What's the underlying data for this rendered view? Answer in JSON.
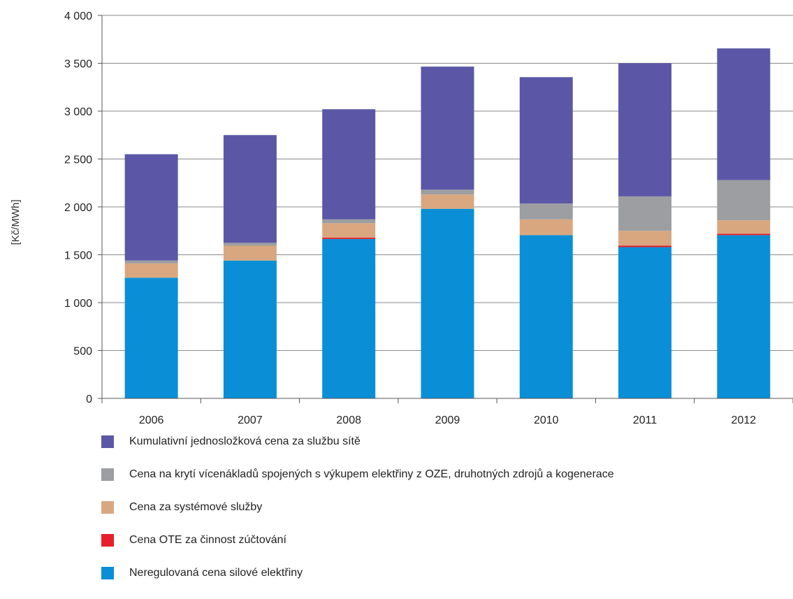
{
  "chart_data": {
    "type": "bar",
    "stacked": true,
    "categories": [
      "2006",
      "2007",
      "2008",
      "2009",
      "2010",
      "2011",
      "2012"
    ],
    "ylabel": "[Kč/MWh]",
    "ylim": [
      0,
      4000
    ],
    "yticks": [
      0,
      500,
      1000,
      1500,
      2000,
      2500,
      3000,
      3500,
      4000
    ],
    "ytick_labels": [
      "0",
      "500",
      "1 000",
      "1 500",
      "2 000",
      "2 500",
      "3 000",
      "3 500",
      "4 000"
    ],
    "grid": true,
    "legend_position": "bottom",
    "series": [
      {
        "name": "Neregulovaná cena silové elektřiny",
        "color": "#0a8fd6",
        "values": [
          1260,
          1440,
          1665,
          1980,
          1705,
          1580,
          1705
        ]
      },
      {
        "name": "Cena OTE za činnost zúčtování",
        "color": "#e6202a",
        "values": [
          0,
          0,
          15,
          0,
          0,
          15,
          15
        ]
      },
      {
        "name": "Cena za systémové služby",
        "color": "#d9a77f",
        "values": [
          150,
          155,
          150,
          150,
          165,
          155,
          140
        ]
      },
      {
        "name": "Cena na krytí vícenákladů spojených s výkupem elektřiny z OZE, druhotných zdrojů a kogenerace",
        "color": "#9c9ea1",
        "values": [
          30,
          30,
          40,
          50,
          165,
          360,
          420
        ]
      },
      {
        "name": "Kumulativní jednosložková cena za službu sítě",
        "color": "#5b57a6",
        "values": [
          1110,
          1125,
          1150,
          1285,
          1320,
          1390,
          1375
        ]
      }
    ]
  },
  "legend": {
    "items": [
      {
        "label": "Kumulativní jednosložková cena za službu sítě",
        "color": "#5b57a6"
      },
      {
        "label": "Cena na krytí vícenákladů spojených s výkupem elektřiny z OZE, druhotných zdrojů a kogenerace",
        "color": "#9c9ea1"
      },
      {
        "label": "Cena za systémové služby",
        "color": "#d9a77f"
      },
      {
        "label": "Cena OTE za činnost zúčtování",
        "color": "#e6202a"
      },
      {
        "label": "Neregulovaná cena silové elektřiny",
        "color": "#0a8fd6"
      }
    ]
  }
}
